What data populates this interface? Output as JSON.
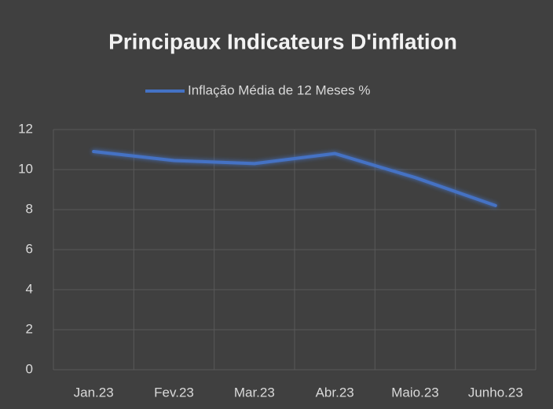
{
  "chart_data": {
    "type": "line",
    "title": "Principaux Indicateurs D'inflation",
    "categories": [
      "Jan.23",
      "Fev.23",
      "Mar.23",
      "Abr.23",
      "Maio.23",
      "Junho.23"
    ],
    "series": [
      {
        "name": "Inflação Média de 12 Meses %",
        "color": "#4472c4",
        "values": [
          10.9,
          10.45,
          10.3,
          10.8,
          9.6,
          8.2
        ]
      }
    ],
    "ylim": [
      0,
      12
    ],
    "yticks": [
      0,
      2,
      4,
      6,
      8,
      10,
      12
    ],
    "grid": true,
    "legend": "top"
  }
}
